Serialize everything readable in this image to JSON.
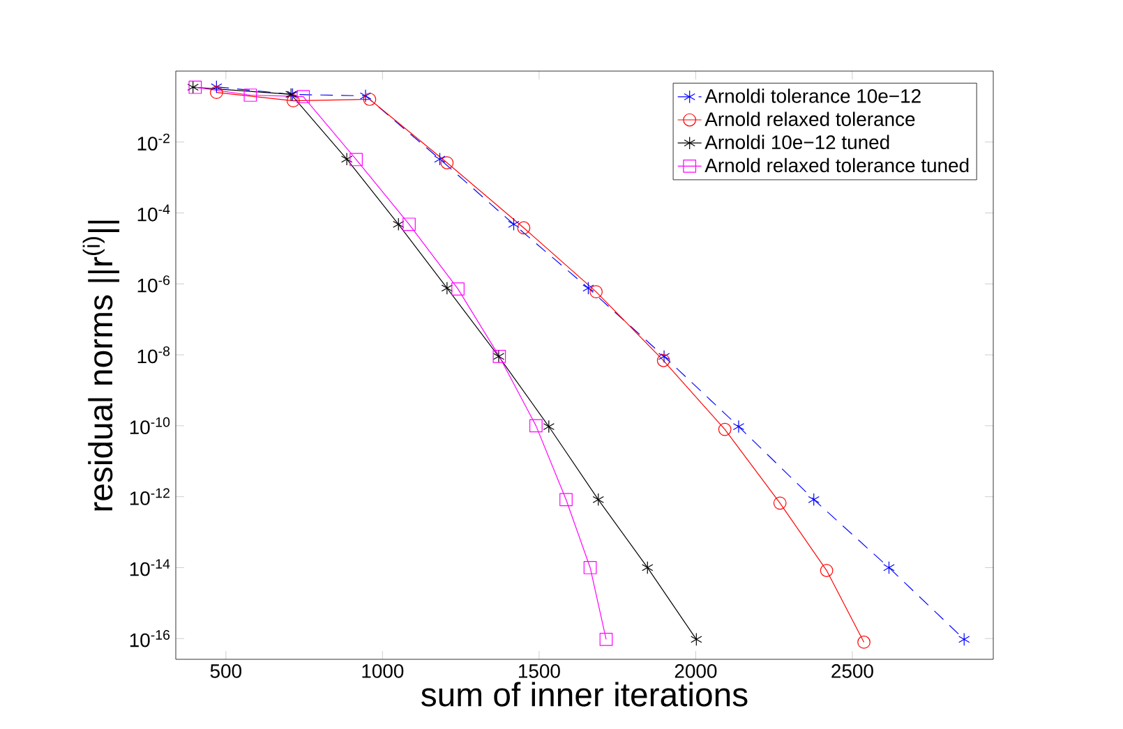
{
  "chart_data": {
    "type": "line",
    "xlabel": "sum of inner iterations",
    "ylabel": "residual norms ||r$^{(i)}$||",
    "log": "y",
    "legend": "top right",
    "grid": false,
    "xlim": [
      340,
      2950
    ],
    "xticks": [
      500,
      1000,
      1500,
      2000,
      2500
    ],
    "ylim": [
      2.6e-17,
      1
    ],
    "yticks": [
      {
        "value": 0.01,
        "label": "10$^{-2}$"
      },
      {
        "value": 0.0001,
        "label": "10$^{-4}$"
      },
      {
        "value": 1e-06,
        "label": "10$^{-6}$"
      },
      {
        "value": 1e-08,
        "label": "10$^{-8}$"
      },
      {
        "value": 1e-10,
        "label": "10$^{-10}$"
      },
      {
        "value": 1e-12,
        "label": "10$^{-12}$"
      },
      {
        "value": 1e-14,
        "label": "10$^{-14}$"
      },
      {
        "value": 1e-16,
        "label": "10$^{-16}$"
      }
    ],
    "series": [
      {
        "name": "Arnoldi tolerance 10e−12",
        "color": "#0000ff",
        "marker": "cross",
        "line_style": "dashed",
        "x": [
          470,
          713,
          946,
          1183,
          1419,
          1657,
          1899,
          2137,
          2377,
          2617,
          2857
        ],
        "values": [
          0.36,
          0.22,
          0.2,
          0.0033,
          4.8e-05,
          7.6e-07,
          9e-09,
          9.5e-11,
          8.3e-13,
          1e-14,
          9.5e-17
        ]
      },
      {
        "name": "Arnold relaxed tolerance",
        "color": "#ff0000",
        "marker": "circle",
        "line_style": "solid",
        "x": [
          470,
          715,
          959,
          1206,
          1451,
          1682,
          1897,
          2093,
          2269,
          2418,
          2537
        ],
        "values": [
          0.25,
          0.145,
          0.16,
          0.0026,
          3.8e-05,
          6e-07,
          6.9e-09,
          7.9e-11,
          6.6e-13,
          8.3e-15,
          7.9e-17
        ]
      },
      {
        "name": "Arnoldi 10e−12 tuned",
        "color": "#000000",
        "marker": "cross",
        "line_style": "solid",
        "x": [
          395,
          708,
          886,
          1051,
          1206,
          1371,
          1531,
          1689,
          1846,
          2002
        ],
        "values": [
          0.35,
          0.22,
          0.0033,
          4.8e-05,
          7.6e-07,
          9e-09,
          9.5e-11,
          8.3e-13,
          1e-14,
          9.5e-17
        ]
      },
      {
        "name": "Arnold relaxed tolerance tuned",
        "color": "#ff00ff",
        "marker": "square",
        "line_style": "solid",
        "x": [
          402,
          578,
          747,
          916,
          1085,
          1241,
          1373,
          1490,
          1586,
          1663,
          1714
        ],
        "values": [
          0.35,
          0.21,
          0.19,
          0.0032,
          4.8e-05,
          7.2e-07,
          9e-09,
          1e-10,
          8.3e-13,
          1e-14,
          9.5e-17
        ]
      }
    ]
  }
}
